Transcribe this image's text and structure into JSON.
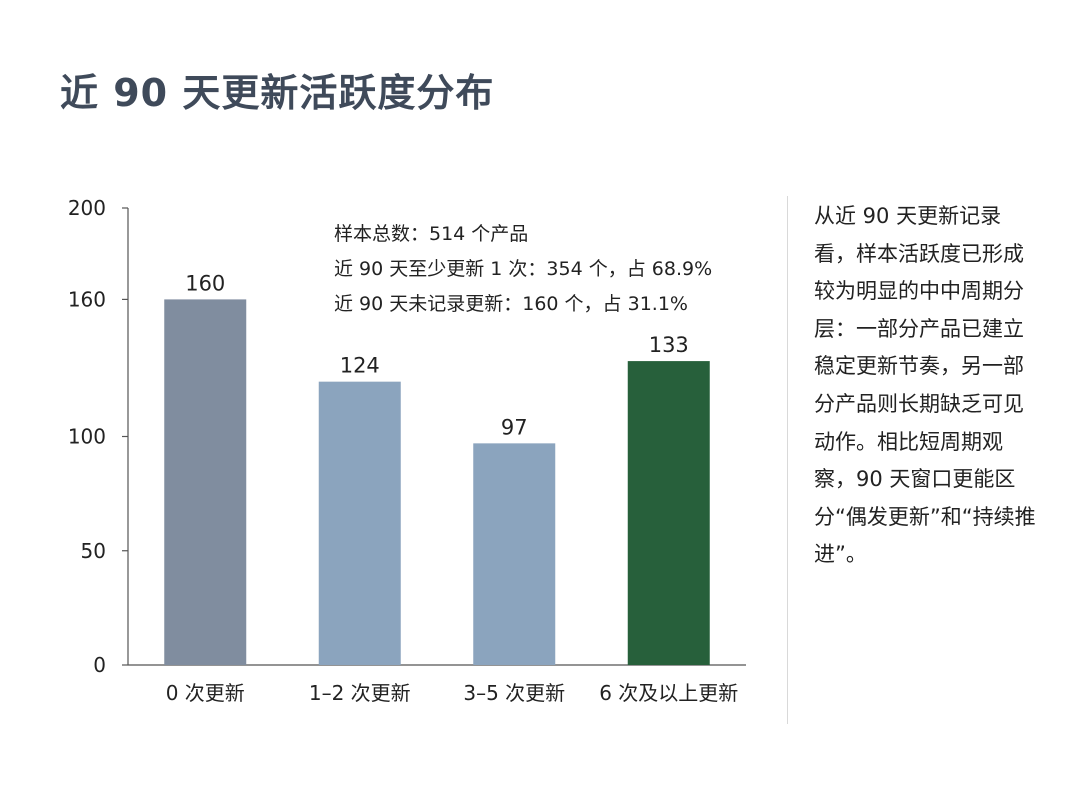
{
  "title": "近 90 天更新活跃度分布",
  "summary": [
    "样本总数：514 个产品",
    "近 90 天至少更新 1 次：354 个，占 68.9%",
    "近 90 天未记录更新：160 个，占 31.1%"
  ],
  "side_note": "从近 90 天更新记录看，样本活跃度已形成较为明显的中中周期分层：一部分产品已建立稳定更新节奏，另一部分产品则长期缺乏可见动作。相比短周期观察，90 天窗口更能区分“偶发更新”和“持续推进”。",
  "chart_data": {
    "type": "bar",
    "title": "近 90 天更新活跃度分布",
    "categories": [
      "0 次更新",
      "1–2 次更新",
      "3–5 次更新",
      "6 次及以上更新"
    ],
    "values": [
      160,
      124,
      97,
      133
    ],
    "colors": [
      "#808d9f",
      "#8ba4be",
      "#8ba4be",
      "#27603b"
    ],
    "ylim": [
      0,
      200
    ],
    "yticks": [
      0,
      50,
      100,
      160,
      200
    ],
    "xlabel": "",
    "ylabel": "",
    "grid": false,
    "legend": "none"
  }
}
